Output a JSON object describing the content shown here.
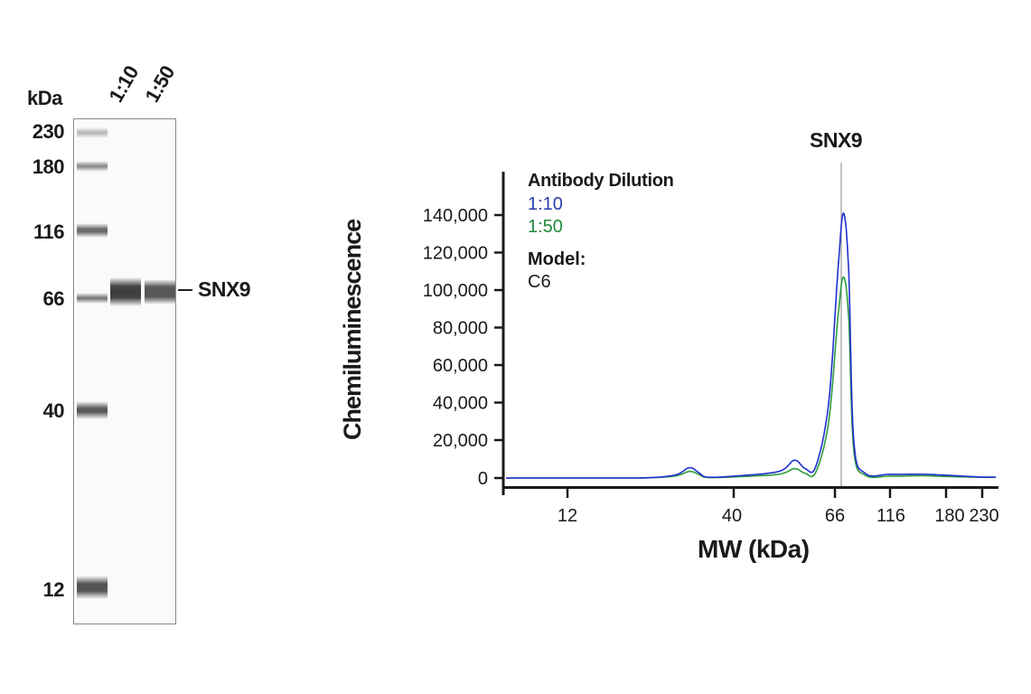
{
  "gel": {
    "unit_label": "kDa",
    "lane_labels": [
      "1:10",
      "1:50"
    ],
    "marker_labels": [
      "230",
      "180",
      "116",
      "66",
      "40",
      "12"
    ],
    "target_label": "SNX9"
  },
  "chart": {
    "title": "SNX9",
    "ylabel": "Chemiluminescence",
    "xlabel": "MW (kDa)",
    "legend": {
      "title": "Antibody Dilution",
      "items": [
        {
          "label": "1:10",
          "color": "#2b3fa8"
        },
        {
          "label": "1:50",
          "color": "#1e8a3c"
        }
      ],
      "model_title": "Model:",
      "model_value": "C6"
    },
    "yticks": [
      "140,000",
      "120,000",
      "100,000",
      "80,000",
      "60,000",
      "40,000",
      "20,000",
      "0"
    ],
    "xticks": [
      "12",
      "40",
      "66",
      "116",
      "180",
      "230"
    ]
  },
  "chart_data": {
    "type": "line",
    "title": "SNX9",
    "xlabel": "MW (kDa)",
    "ylabel": "Chemiluminescence",
    "x_scale": "log (MW)",
    "xticks": [
      12,
      40,
      66,
      116,
      180,
      230
    ],
    "yticks": [
      0,
      20000,
      40000,
      60000,
      80000,
      100000,
      120000,
      140000
    ],
    "ylim": [
      0,
      150000
    ],
    "grid": false,
    "legend_position": "upper-left",
    "reference_line": {
      "label": "SNX9",
      "x_kDa": 72
    },
    "series": [
      {
        "name": "1:10",
        "color": "#1f2fd0",
        "x": [
          8,
          12,
          20,
          26,
          29,
          31,
          33,
          40,
          50,
          54,
          57,
          60,
          64,
          68,
          72,
          76,
          80,
          90,
          116,
          150,
          180,
          230,
          260
        ],
        "y": [
          0,
          0,
          0,
          1500,
          5500,
          3000,
          500,
          1000,
          3500,
          9500,
          5000,
          6000,
          40000,
          110000,
          141000,
          110000,
          20000,
          2500,
          2000,
          2000,
          1500,
          500,
          500
        ]
      },
      {
        "name": "1:50",
        "color": "#2e9a3c",
        "x": [
          8,
          12,
          20,
          26,
          29,
          31,
          33,
          40,
          50,
          54,
          57,
          60,
          64,
          68,
          72,
          76,
          80,
          90,
          116,
          150,
          180,
          230,
          260
        ],
        "y": [
          0,
          0,
          0,
          1000,
          3500,
          2000,
          300,
          600,
          2000,
          5000,
          2500,
          3000,
          30000,
          85000,
          107000,
          85000,
          15000,
          1500,
          1000,
          1200,
          800,
          400,
          400
        ]
      }
    ]
  }
}
